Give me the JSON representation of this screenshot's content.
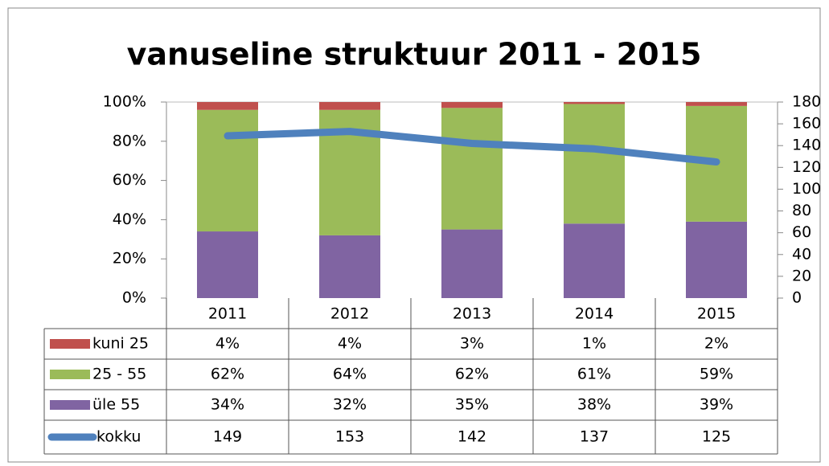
{
  "chart_data": {
    "type": "bar",
    "stacked": true,
    "title": "vanuseline struktuur 2011 - 2015",
    "categories": [
      "2011",
      "2012",
      "2013",
      "2014",
      "2015"
    ],
    "series": [
      {
        "name": "kuni 25",
        "color": "#c0504d",
        "values": [
          4,
          4,
          3,
          1,
          2
        ],
        "value_labels": [
          "4%",
          "4%",
          "3%",
          "1%",
          "2%"
        ]
      },
      {
        "name": "25 - 55",
        "color": "#9bbb59",
        "values": [
          62,
          64,
          62,
          61,
          59
        ],
        "value_labels": [
          "62%",
          "64%",
          "62%",
          "61%",
          "59%"
        ]
      },
      {
        "name": "üle 55",
        "color": "#8064a2",
        "values": [
          34,
          32,
          35,
          38,
          39
        ],
        "value_labels": [
          "34%",
          "32%",
          "35%",
          "38%",
          "39%"
        ]
      },
      {
        "name": "kokku",
        "type": "line",
        "axis": "y2",
        "color": "#4f81bd",
        "values": [
          149,
          153,
          142,
          137,
          125
        ]
      }
    ],
    "ylim": [
      0,
      100
    ],
    "yticks": [
      {
        "value": 0,
        "label": "0%"
      },
      {
        "value": 20,
        "label": "20%"
      },
      {
        "value": 40,
        "label": "40%"
      },
      {
        "value": 60,
        "label": "60%"
      },
      {
        "value": 80,
        "label": "80%"
      },
      {
        "value": 100,
        "label": "100%"
      }
    ],
    "y2lim": [
      0,
      180
    ],
    "y2ticks": [
      0,
      20,
      40,
      60,
      80,
      100,
      120,
      140,
      160,
      180
    ],
    "grid": false
  }
}
